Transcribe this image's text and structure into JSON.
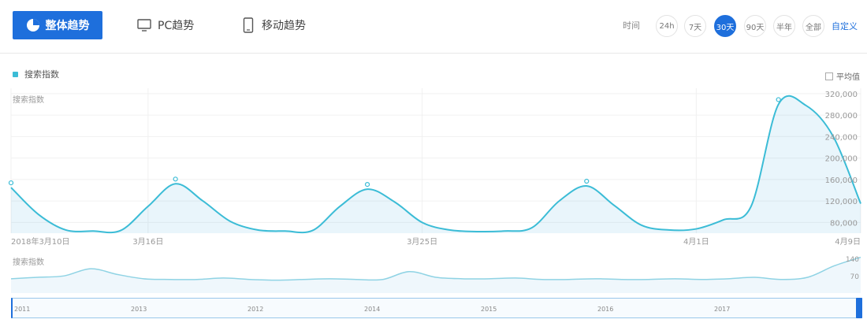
{
  "tabs": {
    "overall": "整体趋势",
    "pc": "PC趋势",
    "mobile": "移动趋势"
  },
  "range": {
    "label": "时间",
    "options": [
      "24h",
      "7天",
      "30天",
      "90天",
      "半年",
      "全部"
    ],
    "active_index": 2,
    "custom": "自定义"
  },
  "legend": {
    "series": "搜索指数",
    "color": "#3bbcd6",
    "avg_toggle": "平均值"
  },
  "chart_labels": {
    "main": "搜索指数",
    "nav": "搜索指数"
  },
  "chart_data": {
    "type": "area",
    "x": [
      "2018年3月10日",
      "",
      "",
      "",
      "",
      "3月16日",
      "",
      "",
      "",
      "",
      "",
      "",
      "",
      "",
      "",
      "3月25日",
      "",
      "",
      "",
      "",
      "",
      "",
      "",
      "",
      "",
      "4月1日",
      "",
      "",
      "",
      "",
      "",
      "4月9日"
    ],
    "y_ticks": [
      "80,000",
      "120,000",
      "160,000",
      "200,000",
      "240,000",
      "280,000",
      "320,000"
    ],
    "ylim": [
      60000,
      330000
    ],
    "x_ticks": [
      "2018年3月10日",
      "3月16日",
      "3月25日",
      "4月1日",
      "4月9日"
    ],
    "series": [
      {
        "name": "搜索指数",
        "values": [
          145000,
          95000,
          66000,
          64000,
          65000,
          110000,
          152000,
          120000,
          82000,
          66000,
          64000,
          65000,
          110000,
          142000,
          118000,
          80000,
          66000,
          63000,
          64000,
          70000,
          120000,
          148000,
          112000,
          75000,
          66000,
          68000,
          85000,
          110000,
          300000,
          298000,
          240000,
          115000
        ]
      }
    ],
    "grid": true
  },
  "navigator": {
    "ticks": [
      "2011",
      "2013",
      "2012",
      "2014",
      "2015",
      "2016",
      "2017"
    ],
    "y_ticks": [
      "140",
      "70"
    ]
  }
}
